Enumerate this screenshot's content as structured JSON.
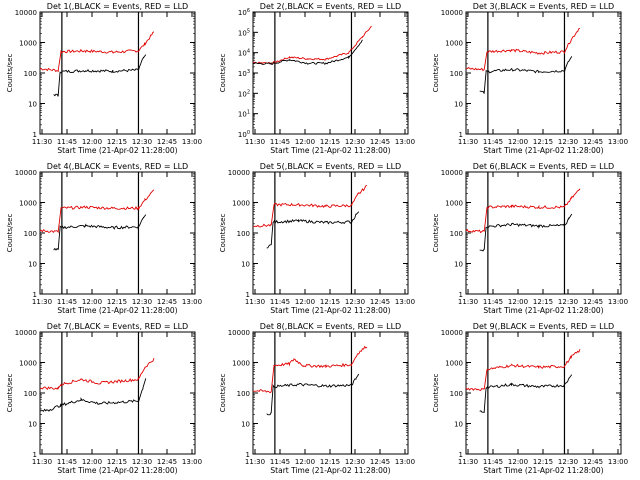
{
  "figure": {
    "x_label": "Start Time (21-Apr-02 11:28:00)",
    "y_label": "Counts/sec",
    "x_ticks": [
      "11:30",
      "11:45",
      "12:00",
      "12:15",
      "12:30",
      "12:45",
      "13:00"
    ],
    "colors": {
      "events": "#000000",
      "lld": "#e00000",
      "background": "#ffffff"
    }
  },
  "chart_data": [
    {
      "type": "line",
      "title": "Det 1(,BLACK = Events, RED = LLD",
      "xlabel": "Start Time (21-Apr-02 11:28:00)",
      "ylabel": "Counts/sec",
      "x_ticks": [
        "11:30",
        "11:45",
        "12:00",
        "12:15",
        "12:30",
        "12:45",
        "13:00"
      ],
      "y_ticks": [
        "1",
        "10",
        "100",
        "1000",
        "10000"
      ],
      "y_log": true,
      "xlim": [
        11.5,
        13.2
      ],
      "ylim": [
        1,
        10000
      ],
      "series": [
        {
          "color": "#e00000",
          "points": [
            [
              11.5,
              140
            ],
            [
              11.7,
              120
            ],
            [
              11.73,
              500
            ],
            [
              12.0,
              530
            ],
            [
              12.3,
              480
            ],
            [
              12.58,
              540
            ],
            [
              12.65,
              900
            ],
            [
              12.75,
              2200
            ]
          ]
        },
        {
          "color": "#000000",
          "points": [
            [
              11.65,
              20
            ],
            [
              11.7,
              18
            ],
            [
              11.72,
              110
            ],
            [
              12.0,
              120
            ],
            [
              12.3,
              115
            ],
            [
              12.58,
              125
            ],
            [
              12.63,
              300
            ],
            [
              12.66,
              400
            ]
          ]
        }
      ],
      "vlines": [
        11.74,
        12.58
      ]
    },
    {
      "type": "line",
      "title": "Det 2(,BLACK = Events, RED = LLD",
      "xlabel": "Start Time (21-Apr-02 11:28:00)",
      "ylabel": "Counts/sec",
      "x_ticks": [
        "11:30",
        "11:45",
        "12:00",
        "12:15",
        "12:30",
        "12:45",
        "13:00"
      ],
      "y_ticks": [
        "10^0",
        "10^1",
        "10^2",
        "10^3",
        "10^4",
        "10^5",
        "10^6"
      ],
      "y_log": true,
      "xlim": [
        11.5,
        13.2
      ],
      "ylim": [
        1,
        1000000
      ],
      "series": [
        {
          "color": "#e00000",
          "points": [
            [
              11.5,
              3200
            ],
            [
              11.7,
              3000
            ],
            [
              11.9,
              6000
            ],
            [
              12.1,
              5000
            ],
            [
              12.3,
              4800
            ],
            [
              12.55,
              10000
            ],
            [
              12.7,
              60000
            ],
            [
              12.8,
              200000
            ]
          ]
        },
        {
          "color": "#000000",
          "points": [
            [
              11.5,
              3000
            ],
            [
              11.7,
              2800
            ],
            [
              11.9,
              4500
            ],
            [
              12.1,
              3000
            ],
            [
              12.3,
              3000
            ],
            [
              12.55,
              6000
            ],
            [
              12.7,
              40000
            ]
          ]
        }
      ],
      "vlines": [
        11.74,
        12.58
      ]
    },
    {
      "type": "line",
      "title": "Det 3(,BLACK = Events, RED = LLD",
      "xlabel": "Start Time (21-Apr-02 11:28:00)",
      "ylabel": "Counts/sec",
      "x_ticks": [
        "11:30",
        "11:45",
        "12:00",
        "12:15",
        "12:30",
        "12:45",
        "13:00"
      ],
      "y_ticks": [
        "1",
        "10",
        "100",
        "1000",
        "10000"
      ],
      "y_log": true,
      "xlim": [
        11.5,
        13.2
      ],
      "ylim": [
        1,
        10000
      ],
      "series": [
        {
          "color": "#e00000",
          "points": [
            [
              11.5,
              140
            ],
            [
              11.7,
              130
            ],
            [
              11.73,
              500
            ],
            [
              12.0,
              560
            ],
            [
              12.3,
              450
            ],
            [
              12.58,
              500
            ],
            [
              12.65,
              1200
            ],
            [
              12.75,
              3200
            ]
          ]
        },
        {
          "color": "#000000",
          "points": [
            [
              11.65,
              25
            ],
            [
              11.7,
              22
            ],
            [
              11.72,
              110
            ],
            [
              12.0,
              130
            ],
            [
              12.3,
              110
            ],
            [
              12.58,
              120
            ],
            [
              12.63,
              250
            ],
            [
              12.66,
              350
            ]
          ]
        }
      ],
      "vlines": [
        11.74,
        12.58
      ]
    },
    {
      "type": "line",
      "title": "Det 4(,BLACK = Events, RED = LLD",
      "xlabel": "Start Time (21-Apr-02 11:28:00)",
      "ylabel": "Counts/sec",
      "x_ticks": [
        "11:30",
        "11:45",
        "12:00",
        "12:15",
        "12:30",
        "12:45",
        "13:00"
      ],
      "y_ticks": [
        "1",
        "10",
        "100",
        "1000",
        "10000"
      ],
      "y_log": true,
      "xlim": [
        11.5,
        13.2
      ],
      "ylim": [
        1,
        10000
      ],
      "series": [
        {
          "color": "#e00000",
          "points": [
            [
              11.5,
              120
            ],
            [
              11.7,
              110
            ],
            [
              11.73,
              650
            ],
            [
              12.0,
              700
            ],
            [
              12.3,
              650
            ],
            [
              12.58,
              650
            ],
            [
              12.65,
              1200
            ],
            [
              12.75,
              2500
            ]
          ]
        },
        {
          "color": "#000000",
          "points": [
            [
              11.65,
              30
            ],
            [
              11.7,
              28
            ],
            [
              11.72,
              150
            ],
            [
              12.0,
              170
            ],
            [
              12.3,
              150
            ],
            [
              12.58,
              160
            ],
            [
              12.63,
              300
            ],
            [
              12.66,
              400
            ]
          ]
        }
      ],
      "vlines": [
        11.74,
        12.58
      ]
    },
    {
      "type": "line",
      "title": "Det 5(,BLACK = Events, RED = LLD",
      "xlabel": "Start Time (21-Apr-02 11:28:00)",
      "ylabel": "Counts/sec",
      "x_ticks": [
        "11:30",
        "11:45",
        "12:00",
        "12:15",
        "12:30",
        "12:45",
        "13:00"
      ],
      "y_ticks": [
        "1",
        "10",
        "100",
        "1000",
        "10000"
      ],
      "y_log": true,
      "xlim": [
        11.5,
        13.2
      ],
      "ylim": [
        1,
        10000
      ],
      "series": [
        {
          "color": "#e00000",
          "points": [
            [
              11.5,
              170
            ],
            [
              11.7,
              180
            ],
            [
              11.73,
              850
            ],
            [
              12.0,
              850
            ],
            [
              12.3,
              750
            ],
            [
              12.58,
              800
            ],
            [
              12.65,
              1800
            ],
            [
              12.75,
              3500
            ]
          ]
        },
        {
          "color": "#000000",
          "points": [
            [
              11.65,
              35
            ],
            [
              11.7,
              40
            ],
            [
              11.72,
              230
            ],
            [
              12.0,
              250
            ],
            [
              12.3,
              220
            ],
            [
              12.58,
              230
            ],
            [
              12.63,
              400
            ],
            [
              12.66,
              500
            ]
          ]
        }
      ],
      "vlines": [
        11.74,
        12.58
      ]
    },
    {
      "type": "line",
      "title": "Det 6(,BLACK = Events, RED = LLD",
      "xlabel": "Start Time (21-Apr-02 11:28:00)",
      "ylabel": "Counts/sec",
      "x_ticks": [
        "11:30",
        "11:45",
        "12:00",
        "12:15",
        "12:30",
        "12:45",
        "13:00"
      ],
      "y_ticks": [
        "1",
        "10",
        "100",
        "1000",
        "10000"
      ],
      "y_log": true,
      "xlim": [
        11.5,
        13.2
      ],
      "ylim": [
        1,
        10000
      ],
      "series": [
        {
          "color": "#e00000",
          "points": [
            [
              11.5,
              120
            ],
            [
              11.7,
              110
            ],
            [
              11.73,
              700
            ],
            [
              12.0,
              750
            ],
            [
              12.3,
              700
            ],
            [
              12.58,
              700
            ],
            [
              12.65,
              1300
            ],
            [
              12.75,
              2800
            ]
          ]
        },
        {
          "color": "#000000",
          "points": [
            [
              11.65,
              30
            ],
            [
              11.7,
              28
            ],
            [
              11.72,
              160
            ],
            [
              12.0,
              190
            ],
            [
              12.3,
              170
            ],
            [
              12.58,
              175
            ],
            [
              12.63,
              300
            ],
            [
              12.66,
              420
            ]
          ]
        }
      ],
      "vlines": [
        11.74,
        12.58
      ]
    },
    {
      "type": "line",
      "title": "Det 7(,BLACK = Events, RED = LLD",
      "xlabel": "Start Time (21-Apr-02 11:28:00)",
      "ylabel": "Counts/sec",
      "x_ticks": [
        "11:30",
        "11:45",
        "12:00",
        "12:15",
        "12:30",
        "12:45",
        "13:00"
      ],
      "y_ticks": [
        "1",
        "10",
        "100",
        "1000",
        "10000"
      ],
      "y_log": true,
      "xlim": [
        11.5,
        13.2
      ],
      "ylim": [
        1,
        10000
      ],
      "series": [
        {
          "color": "#e00000",
          "points": [
            [
              11.5,
              150
            ],
            [
              11.7,
              140
            ],
            [
              11.73,
              190
            ],
            [
              11.95,
              280
            ],
            [
              12.15,
              210
            ],
            [
              12.58,
              280
            ],
            [
              12.65,
              700
            ],
            [
              12.75,
              1300
            ]
          ]
        },
        {
          "color": "#000000",
          "points": [
            [
              11.5,
              25
            ],
            [
              11.6,
              28
            ],
            [
              11.73,
              40
            ],
            [
              11.95,
              60
            ],
            [
              12.15,
              45
            ],
            [
              12.58,
              55
            ],
            [
              12.63,
              150
            ],
            [
              12.66,
              300
            ]
          ]
        }
      ],
      "vlines": [
        11.74,
        12.58
      ]
    },
    {
      "type": "line",
      "title": "Det 8(,BLACK = Events, RED = LLD",
      "xlabel": "Start Time (21-Apr-02 11:28:00)",
      "ylabel": "Counts/sec",
      "x_ticks": [
        "11:30",
        "11:45",
        "12:00",
        "12:15",
        "12:30",
        "12:45",
        "13:00"
      ],
      "y_ticks": [
        "1",
        "10",
        "100",
        "1000",
        "10000"
      ],
      "y_log": true,
      "xlim": [
        11.5,
        13.2
      ],
      "ylim": [
        1,
        10000
      ],
      "series": [
        {
          "color": "#e00000",
          "points": [
            [
              11.5,
              120
            ],
            [
              11.7,
              110
            ],
            [
              11.73,
              800
            ],
            [
              11.9,
              900
            ],
            [
              11.95,
              1300
            ],
            [
              12.05,
              800
            ],
            [
              12.3,
              750
            ],
            [
              12.58,
              850
            ],
            [
              12.65,
              2000
            ],
            [
              12.75,
              3500
            ]
          ]
        },
        {
          "color": "#000000",
          "points": [
            [
              11.65,
              20
            ],
            [
              11.7,
              22
            ],
            [
              11.72,
              160
            ],
            [
              12.0,
              190
            ],
            [
              12.3,
              170
            ],
            [
              12.58,
              180
            ],
            [
              12.63,
              300
            ],
            [
              12.66,
              420
            ]
          ]
        }
      ],
      "vlines": [
        11.74,
        12.58
      ]
    },
    {
      "type": "line",
      "title": "Det 9(,BLACK = Events, RED = LLD",
      "xlabel": "Start Time (21-Apr-02 11:28:00)",
      "ylabel": "Counts/sec",
      "x_ticks": [
        "11:30",
        "11:45",
        "12:00",
        "12:15",
        "12:30",
        "12:45",
        "13:00"
      ],
      "y_ticks": [
        "1",
        "10",
        "100",
        "1000",
        "10000"
      ],
      "y_log": true,
      "xlim": [
        11.5,
        13.2
      ],
      "ylim": [
        1,
        10000
      ],
      "series": [
        {
          "color": "#e00000",
          "points": [
            [
              11.5,
              140
            ],
            [
              11.7,
              130
            ],
            [
              11.73,
              600
            ],
            [
              12.0,
              800
            ],
            [
              12.3,
              700
            ],
            [
              12.58,
              750
            ],
            [
              12.65,
              1500
            ],
            [
              12.75,
              2500
            ]
          ]
        },
        {
          "color": "#000000",
          "points": [
            [
              11.65,
              25
            ],
            [
              11.7,
              24
            ],
            [
              11.72,
              150
            ],
            [
              12.0,
              190
            ],
            [
              12.3,
              160
            ],
            [
              12.58,
              180
            ],
            [
              12.63,
              300
            ],
            [
              12.66,
              400
            ]
          ]
        }
      ],
      "vlines": [
        11.74,
        12.58
      ]
    }
  ]
}
